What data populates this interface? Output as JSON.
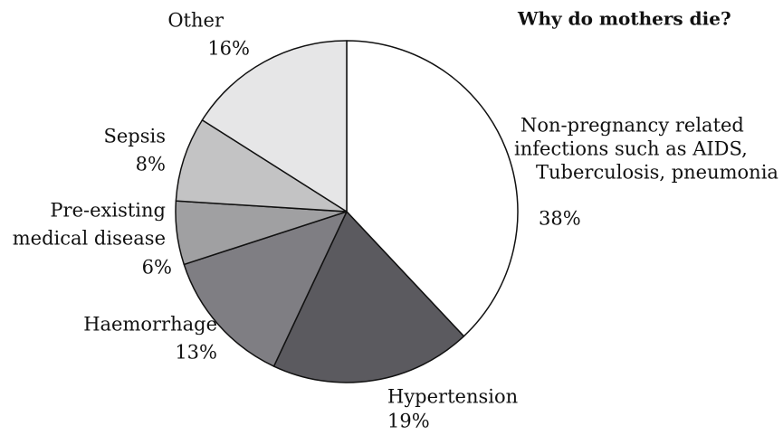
{
  "chart_data": {
    "type": "pie",
    "title": "Why do mothers die?",
    "categories": [
      [
        "Non-pregnancy related",
        "infections such as AIDS,",
        "Tuberculosis, pneumonia"
      ],
      [
        "Hypertension"
      ],
      [
        "Haemorrhage"
      ],
      [
        "Pre-existing",
        "medical disease"
      ],
      [
        "Sepsis"
      ],
      [
        "Other"
      ]
    ],
    "values": [
      38,
      19,
      13,
      6,
      8,
      16
    ],
    "value_labels": [
      "38%",
      "19%",
      "13%",
      "6%",
      "8%",
      "16%"
    ],
    "colors": [
      "#ffffff",
      "#5b5a5f",
      "#7f7e83",
      "#a0a0a2",
      "#c3c3c4",
      "#e6e6e7"
    ]
  }
}
